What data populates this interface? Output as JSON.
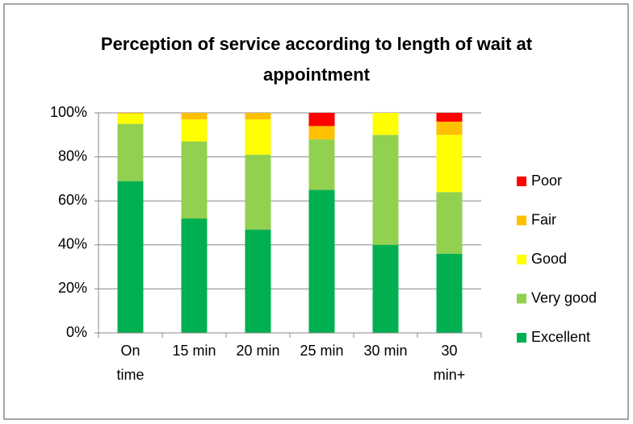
{
  "chart_data": {
    "type": "stacked_bar",
    "title": "Perception of service according to length of wait at appointment",
    "categories": [
      "On time",
      "15 min",
      "20 min",
      "25 min",
      "30 min",
      "30 min+"
    ],
    "series": [
      {
        "name": "Excellent",
        "color": "#00b050",
        "values": [
          69,
          52,
          47,
          65,
          40,
          36
        ]
      },
      {
        "name": "Very good",
        "color": "#92d050",
        "values": [
          26,
          35,
          34,
          23,
          50,
          28
        ]
      },
      {
        "name": "Good",
        "color": "#ffff00",
        "values": [
          4.5,
          10,
          16,
          0,
          10,
          26
        ]
      },
      {
        "name": "Fair",
        "color": "#ffc000",
        "values": [
          0.5,
          3,
          3,
          6,
          0,
          6
        ]
      },
      {
        "name": "Poor",
        "color": "#ff0000",
        "values": [
          0,
          0,
          0,
          6,
          0,
          4
        ]
      }
    ],
    "ylim": [
      0,
      100
    ],
    "yticks": [
      {
        "value": 0,
        "label": "0%"
      },
      {
        "value": 20,
        "label": "20%"
      },
      {
        "value": 40,
        "label": "40%"
      },
      {
        "value": 60,
        "label": "60%"
      },
      {
        "value": 80,
        "label": "80%"
      },
      {
        "value": 100,
        "label": "100%"
      }
    ],
    "grid": true,
    "legend": "right"
  }
}
